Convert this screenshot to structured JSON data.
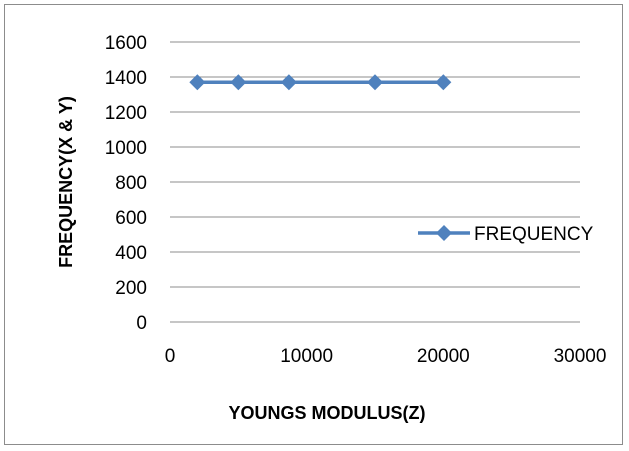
{
  "chart_data": {
    "type": "scatter",
    "title": "",
    "xlabel": "YOUNGS  MODULUS(Z)",
    "ylabel": "FREQUENCY(X & Y)",
    "xlim": [
      0,
      30000
    ],
    "ylim": [
      0,
      1600
    ],
    "x_ticks": [
      "0",
      "10000",
      "20000",
      "30000"
    ],
    "y_ticks": [
      "0",
      "200",
      "400",
      "600",
      "800",
      "1000",
      "1200",
      "1400",
      "1600"
    ],
    "grid": "horizontal major gridlines",
    "legend_position": "right",
    "series": [
      {
        "name": "FREQUENCY",
        "color": "#4f81bd",
        "marker": "diamond",
        "x": [
          2000,
          5000,
          8700,
          15000,
          20000
        ],
        "y": [
          1370,
          1370,
          1370,
          1370,
          1370
        ]
      }
    ]
  }
}
